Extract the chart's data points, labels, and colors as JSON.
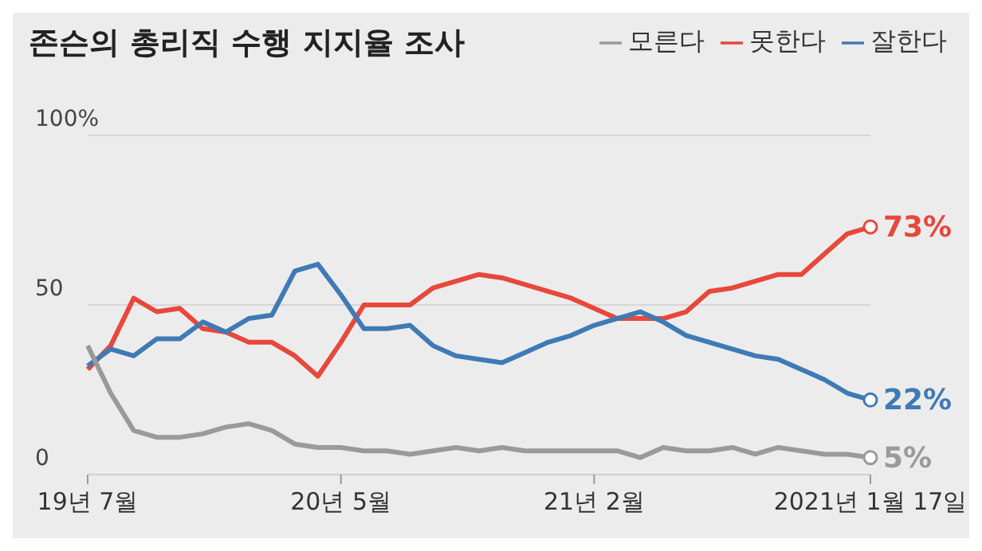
{
  "chart_data": {
    "type": "line",
    "title": "존슨의 총리직 수행 지지율 조사",
    "categories": [
      "19년 7월",
      null,
      null,
      null,
      null,
      null,
      null,
      null,
      null,
      null,
      null,
      "20년 5월",
      null,
      null,
      null,
      null,
      null,
      null,
      null,
      null,
      null,
      null,
      "21년 2월",
      null,
      null,
      null,
      null,
      null,
      null,
      null,
      null,
      null,
      null,
      null,
      "2021년 1월 17일"
    ],
    "series": [
      {
        "name": "못한다",
        "color": "#e8473c",
        "values": [
          31,
          38,
          52,
          48,
          49,
          43,
          42,
          39,
          39,
          35,
          29,
          39,
          50,
          50,
          50,
          55,
          57,
          59,
          58,
          56,
          54,
          52,
          49,
          46,
          46,
          46,
          48,
          54,
          55,
          57,
          59,
          59,
          65,
          71,
          73
        ],
        "value_labels": [
          null,
          null,
          null,
          null,
          null,
          null,
          null,
          null,
          null,
          null,
          null,
          null,
          null,
          null,
          null,
          null,
          null,
          null,
          null,
          null,
          null,
          null,
          null,
          null,
          null,
          null,
          null,
          null,
          null,
          null,
          null,
          null,
          null,
          null,
          "73%"
        ]
      },
      {
        "name": "잘한다",
        "color": "#3f7ab5",
        "values": [
          32,
          37,
          35,
          40,
          40,
          45,
          42,
          46,
          47,
          60,
          62,
          53,
          43,
          43,
          44,
          38,
          35,
          34,
          33,
          36,
          39,
          41,
          44,
          46,
          48,
          45,
          41,
          39,
          37,
          35,
          34,
          31,
          28,
          24,
          22
        ],
        "value_labels": [
          null,
          null,
          null,
          null,
          null,
          null,
          null,
          null,
          null,
          null,
          null,
          null,
          null,
          null,
          null,
          null,
          null,
          null,
          null,
          null,
          null,
          null,
          null,
          null,
          null,
          null,
          null,
          null,
          null,
          null,
          null,
          null,
          null,
          null,
          "22%"
        ]
      },
      {
        "name": "모른다",
        "color": "#9a9a9a",
        "values": [
          38,
          24,
          13,
          11,
          11,
          12,
          14,
          15,
          13,
          9,
          8,
          8,
          7,
          7,
          6,
          7,
          8,
          7,
          8,
          7,
          7,
          7,
          7,
          7,
          5,
          8,
          7,
          7,
          8,
          6,
          8,
          7,
          6,
          6,
          5
        ],
        "value_labels": [
          null,
          null,
          null,
          null,
          null,
          null,
          null,
          null,
          null,
          null,
          null,
          null,
          null,
          null,
          null,
          null,
          null,
          null,
          null,
          null,
          null,
          null,
          null,
          null,
          null,
          null,
          null,
          null,
          null,
          null,
          null,
          null,
          null,
          null,
          "5%"
        ]
      }
    ],
    "ylim": [
      0,
      100
    ],
    "yticks": [
      0,
      50,
      {
        "value": 100,
        "label": "100%"
      }
    ],
    "grid": "y",
    "legend": "top right",
    "marker": "none",
    "line_style": "solid"
  }
}
